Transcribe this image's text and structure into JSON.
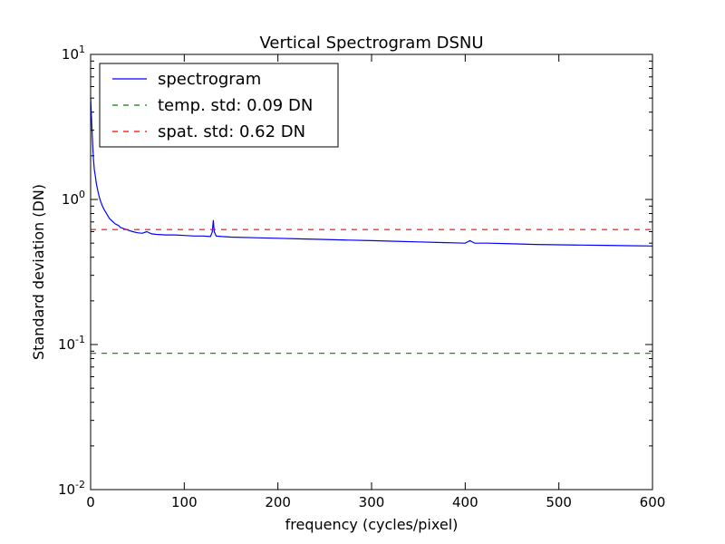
{
  "chart_data": {
    "type": "line",
    "title": "Vertical Spectrogram DSNU",
    "xlabel": "frequency (cycles/pixel)",
    "ylabel": "Standard deviation (DN)",
    "xlim": [
      0,
      600
    ],
    "ylim": [
      0.01,
      10
    ],
    "yscale": "log",
    "grid": false,
    "legend_position": "top-left",
    "x_ticks": [
      {
        "value": 0,
        "label": "0"
      },
      {
        "value": 100,
        "label": "100"
      },
      {
        "value": 200,
        "label": "200"
      },
      {
        "value": 300,
        "label": "300"
      },
      {
        "value": 400,
        "label": "400"
      },
      {
        "value": 500,
        "label": "500"
      },
      {
        "value": 600,
        "label": "600"
      }
    ],
    "y_ticks": [
      {
        "value": 10,
        "base": "10",
        "exp": "1"
      },
      {
        "value": 1,
        "base": "10",
        "exp": "0"
      },
      {
        "value": 0.1,
        "base": "10",
        "exp": "-1"
      },
      {
        "value": 0.01,
        "base": "10",
        "exp": "-2"
      }
    ],
    "series": [
      {
        "name": "spectrogram",
        "style": "solid",
        "color": "#0000ff",
        "x": [
          0,
          1,
          2,
          3,
          4,
          5,
          6,
          8,
          10,
          12,
          14,
          16,
          18,
          20,
          22,
          24,
          26,
          28,
          30,
          32,
          35,
          38,
          40,
          45,
          50,
          55,
          60,
          65,
          70,
          80,
          90,
          100,
          110,
          120,
          128,
          130,
          131,
          132,
          134,
          140,
          150,
          175,
          200,
          225,
          250,
          275,
          300,
          325,
          350,
          375,
          400,
          405,
          410,
          425,
          450,
          475,
          500,
          525,
          550,
          575,
          600
        ],
        "y": [
          5.0,
          3.6,
          2.5,
          1.9,
          1.6,
          1.45,
          1.3,
          1.12,
          1.0,
          0.92,
          0.86,
          0.82,
          0.78,
          0.74,
          0.72,
          0.7,
          0.68,
          0.67,
          0.66,
          0.64,
          0.63,
          0.62,
          0.615,
          0.6,
          0.59,
          0.585,
          0.6,
          0.58,
          0.575,
          0.57,
          0.57,
          0.565,
          0.56,
          0.56,
          0.555,
          0.6,
          0.72,
          0.6,
          0.56,
          0.555,
          0.55,
          0.545,
          0.54,
          0.535,
          0.53,
          0.525,
          0.52,
          0.515,
          0.51,
          0.505,
          0.5,
          0.52,
          0.5,
          0.5,
          0.495,
          0.49,
          0.487,
          0.485,
          0.483,
          0.48,
          0.478
        ]
      },
      {
        "name": "temp. std: 0.09 DN",
        "style": "dashed",
        "color": "#008000",
        "x": [
          0,
          600
        ],
        "y": [
          0.087,
          0.087
        ]
      },
      {
        "name": "spat. std: 0.62 DN",
        "style": "dashed",
        "color": "#ff0000",
        "x": [
          0,
          600
        ],
        "y": [
          0.62,
          0.62
        ]
      }
    ]
  }
}
